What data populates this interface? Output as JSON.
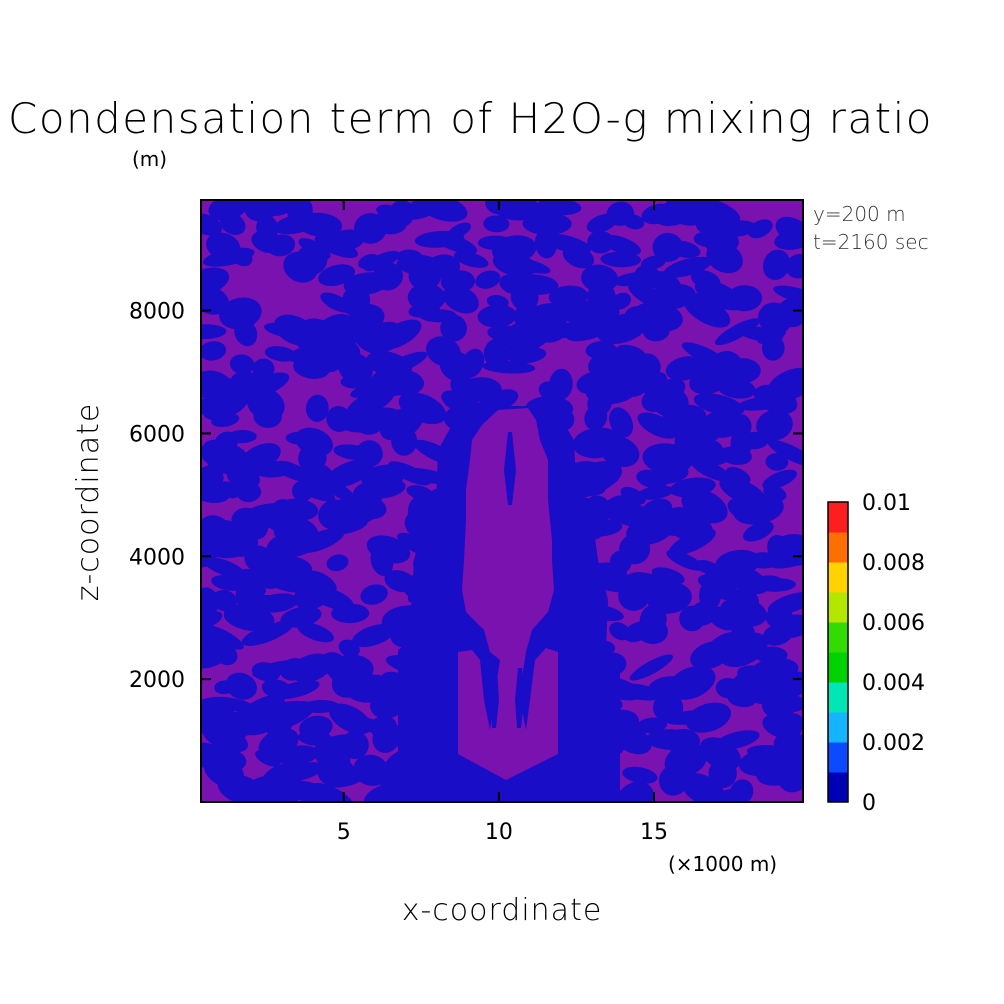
{
  "chart_data": {
    "type": "heatmap",
    "title": "Condensation term of H2O-g mixing ratio",
    "ylabel": "z-coordinate",
    "xlabel": "x-coordinate",
    "y_unit": "(m)",
    "x_unit": "(×1000 m)",
    "xlim": [
      0.4,
      19.8
    ],
    "ylim": [
      0,
      9800
    ],
    "x_ticks": [
      5,
      10,
      15
    ],
    "x_tick_labels": [
      "5",
      "10",
      "15"
    ],
    "y_ticks": [
      2000,
      4000,
      6000,
      8000
    ],
    "y_tick_labels": [
      "2000",
      "4000",
      "6000",
      "8000"
    ],
    "annotations": [
      "y=200 m",
      "t=2160 sec"
    ],
    "colorbar": {
      "min": 0,
      "max": 0.01,
      "step": 0.001,
      "tick_values": [
        0,
        0.002,
        0.004,
        0.006,
        0.008,
        0.01
      ],
      "tick_labels": [
        "0",
        "0.002",
        "0.004",
        "0.006",
        "0.008",
        "0.01"
      ],
      "colors": [
        "#0000b4",
        "#0a4bff",
        "#14b4ff",
        "#00e6b4",
        "#00d200",
        "#32dc00",
        "#b4e600",
        "#ffd200",
        "#ff6e00",
        "#ff1e1e"
      ]
    },
    "field_colors": {
      "background": "#1a0dc8",
      "patches": "#7a12b0"
    },
    "regions": [
      {
        "name": "lower-block",
        "x": [
          9.0,
          11.4
        ],
        "z": [
          400,
          2500
        ],
        "level": "patches"
      },
      {
        "name": "central-column",
        "x": [
          9.1,
          11.5
        ],
        "z": [
          2650,
          6200
        ],
        "level": "patches"
      },
      {
        "name": "cloud-envelope",
        "x": [
          6.8,
          13.2
        ],
        "z": [
          0,
          6450
        ],
        "level": "background"
      }
    ]
  }
}
